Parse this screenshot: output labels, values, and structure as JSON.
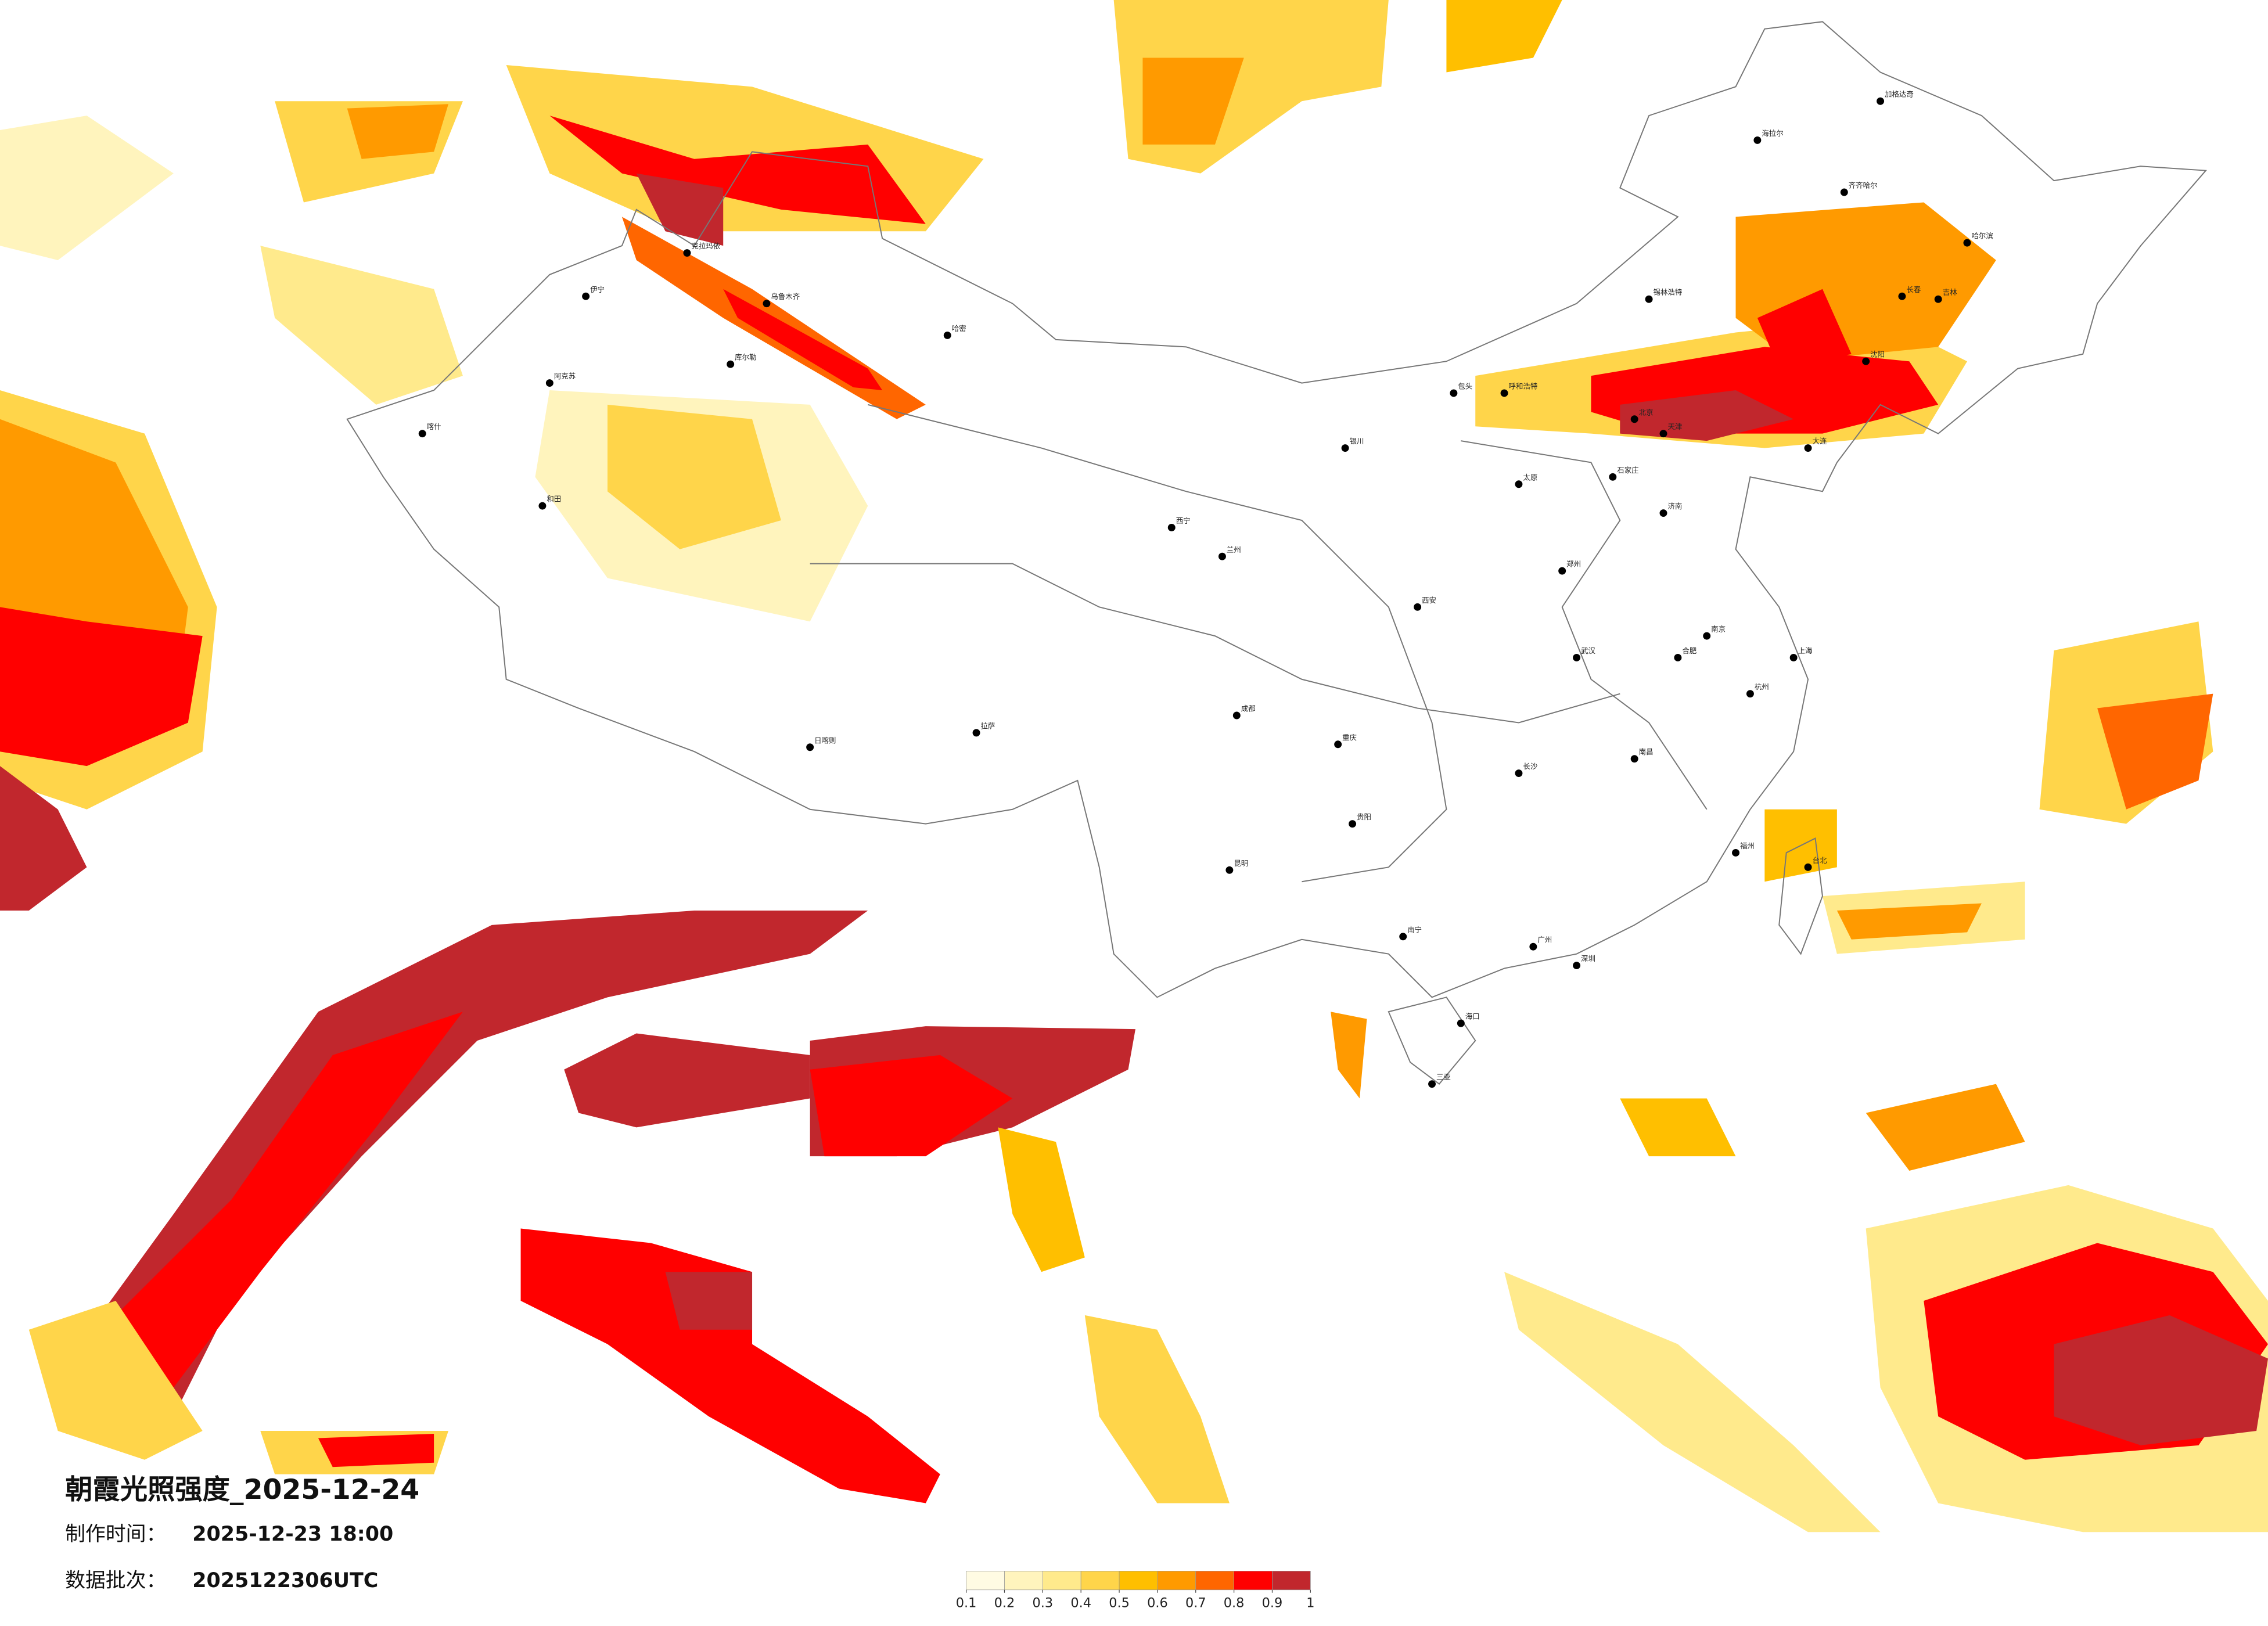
{
  "title": "朝霞光照强度_2025-12-24",
  "made_label": "制作时间：",
  "made_time": "2025-12-23 18:00",
  "batch_label": "数据批次：",
  "batch": "2025122306UTC",
  "legend": {
    "ticks": [
      0.1,
      0.2,
      0.3,
      0.4,
      0.5,
      0.6,
      0.7,
      0.8,
      0.9,
      1
    ],
    "colors": [
      "#fffbe3",
      "#fff4bd",
      "#ffea8c",
      "#ffd54a",
      "#ffbf00",
      "#ff9a00",
      "#ff6600",
      "#ff0000",
      "#c1272d"
    ]
  },
  "cities": [
    "乌鲁木齐",
    "克拉玛依",
    "伊宁",
    "喀什",
    "和田",
    "阿克苏",
    "库尔勒",
    "哈密",
    "拉萨",
    "日喀则",
    "西宁",
    "兰州",
    "银川",
    "呼和浩特",
    "包头",
    "北京",
    "天津",
    "石家庄",
    "太原",
    "济南",
    "郑州",
    "西安",
    "成都",
    "重庆",
    "贵阳",
    "昆明",
    "南宁",
    "广州",
    "深圳",
    "海口",
    "三亚",
    "武汉",
    "长沙",
    "南昌",
    "合肥",
    "南京",
    "上海",
    "杭州",
    "福州",
    "台北",
    "沈阳",
    "大连",
    "长春",
    "吉林",
    "哈尔滨",
    "齐齐哈尔",
    "海拉尔",
    "加格达奇",
    "锡林浩特"
  ]
}
